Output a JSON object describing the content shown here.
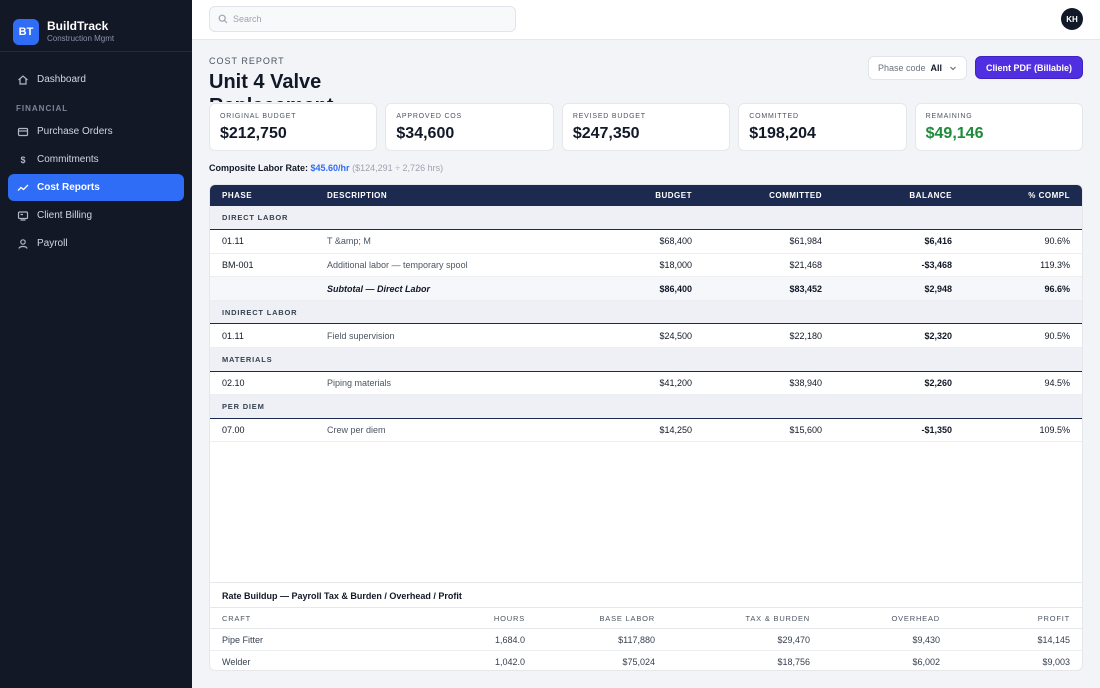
{
  "brand": {
    "logo": "BT",
    "name": "BuildTrack",
    "sub": "Construction Mgmt"
  },
  "sidebar": {
    "items_top": [
      {
        "label": "Dashboard",
        "icon": "home-icon"
      }
    ],
    "section": "FINANCIAL",
    "items": [
      {
        "label": "Purchase Orders",
        "icon": "receipt-icon"
      },
      {
        "label": "Commitments",
        "icon": "dollar-icon"
      },
      {
        "label": "Cost Reports",
        "icon": "trend-icon",
        "active": true
      },
      {
        "label": "Client Billing",
        "icon": "billing-icon"
      },
      {
        "label": "Payroll",
        "icon": "user-icon"
      }
    ]
  },
  "topbar": {
    "search_placeholder": "Search",
    "avatar": "KH"
  },
  "header": {
    "eyebrow": "COST REPORT",
    "title": "Unit 4 Valve Replacement",
    "phase_label": "Phase code",
    "phase_value": "All",
    "pdf_button": "Client PDF (Billable)"
  },
  "cards": [
    {
      "label": "ORIGINAL BUDGET",
      "value": "$212,750"
    },
    {
      "label": "APPROVED COS",
      "value": "$34,600"
    },
    {
      "label": "REVISED BUDGET",
      "value": "$247,350"
    },
    {
      "label": "COMMITTED",
      "value": "$198,204"
    },
    {
      "label": "REMAINING",
      "value": "$49,146"
    }
  ],
  "rate": {
    "label": "Composite Labor Rate:",
    "value": "$45.60/hr",
    "note": "($124,291 ÷ 2,726 hrs)"
  },
  "cost_table": {
    "headers": [
      "PHASE",
      "DESCRIPTION",
      "BUDGET",
      "COMMITTED",
      "BALANCE",
      "% COMPL"
    ],
    "groups": [
      {
        "name": "DIRECT LABOR",
        "rows": [
          {
            "phase": "01.11",
            "desc": "T &amp; M",
            "budget": "$68,400",
            "committed": "$61,984",
            "balance": "$6,416",
            "pct": "90.6%"
          },
          {
            "phase": "BM-001",
            "desc": "Additional labor — temporary spool",
            "budget": "$18,000",
            "committed": "$21,468",
            "balance": "-$3,468",
            "pct": "119.3%"
          }
        ],
        "subtotal": {
          "desc": "Subtotal — Direct Labor",
          "budget": "$86,400",
          "committed": "$83,452",
          "balance": "$2,948",
          "pct": "96.6%"
        }
      },
      {
        "name": "INDIRECT LABOR",
        "rows": [
          {
            "phase": "01.11",
            "desc": "Field supervision",
            "budget": "$24,500",
            "committed": "$22,180",
            "balance": "$2,320",
            "pct": "90.5%"
          }
        ]
      },
      {
        "name": "MATERIALS",
        "rows": [
          {
            "phase": "02.10",
            "desc": "Piping materials",
            "budget": "$41,200",
            "committed": "$38,940",
            "balance": "$2,260",
            "pct": "94.5%"
          }
        ]
      },
      {
        "name": "PER DIEM",
        "rows": [
          {
            "phase": "07.00",
            "desc": "Crew per diem",
            "budget": "$14,250",
            "committed": "$15,600",
            "balance": "-$1,350",
            "pct": "109.5%"
          }
        ]
      }
    ]
  },
  "rate_buildup": {
    "title": "Rate Buildup — Payroll Tax & Burden / Overhead / Profit",
    "headers": [
      "CRAFT",
      "HOURS",
      "BASE LABOR",
      "TAX & BURDEN",
      "OVERHEAD",
      "PROFIT"
    ],
    "rows": [
      {
        "craft": "Pipe Fitter",
        "hours": "1,684.0",
        "base": "$117,880",
        "tax": "$29,470",
        "overhead": "$9,430",
        "profit": "$14,145"
      },
      {
        "craft": "Welder",
        "hours": "1,042.0",
        "base": "$75,024",
        "tax": "$18,756",
        "overhead": "$6,002",
        "profit": "$9,003"
      }
    ]
  },
  "colors": {
    "sidebar": "#131826",
    "accent": "#2f6df6",
    "button": "#4f2fe0",
    "table_header": "#1b2a4e",
    "positive": "#1f8a3a",
    "negative": "#d0243c"
  }
}
